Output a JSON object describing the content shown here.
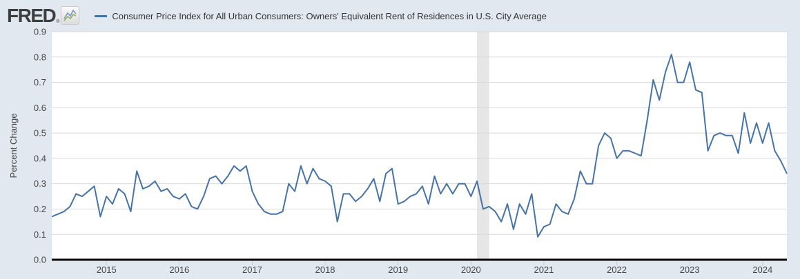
{
  "header": {
    "logo_text": "FRED",
    "registered_mark": "®",
    "title": "Consumer Price Index for All Urban Consumers: Owners' Equivalent Rent of Residences in U.S. City Average"
  },
  "colors": {
    "page_background": "#e2e8f0",
    "plot_background": "#ffffff",
    "gridline": "#d9d9d9",
    "axis_line": "#000000",
    "recession_band": "#e6e6e6",
    "series_line": "#4572a7",
    "axis_text": "#454545",
    "tick_mark": "#c3cedb",
    "logo_text_color": "#3d3d3d"
  },
  "chart_data": {
    "type": "line",
    "title": "Consumer Price Index for All Urban Consumers: Owners' Equivalent Rent of Residences in U.S. City Average",
    "xlabel": "",
    "ylabel": "Percent Change",
    "ylim": [
      0.0,
      0.9
    ],
    "y_tick_labels": [
      "0.0",
      "0.1",
      "0.2",
      "0.3",
      "0.4",
      "0.5",
      "0.6",
      "0.7",
      "0.8",
      "0.9"
    ],
    "x_tick_labels": [
      "2015",
      "2016",
      "2017",
      "2018",
      "2019",
      "2020",
      "2021",
      "2022",
      "2023",
      "2024"
    ],
    "grid": true,
    "legend_position": "top-left",
    "frequency": "monthly",
    "x_start": "2014-04",
    "x_end": "2024-05",
    "recession_band": {
      "start": "2020-02",
      "end": "2020-04"
    },
    "series": [
      {
        "name": "Consumer Price Index for All Urban Consumers: Owners' Equivalent Rent of Residences in U.S. City Average",
        "color": "#4572a7",
        "values": [
          0.17,
          0.18,
          0.19,
          0.21,
          0.26,
          0.25,
          0.27,
          0.29,
          0.17,
          0.25,
          0.22,
          0.28,
          0.26,
          0.19,
          0.35,
          0.28,
          0.29,
          0.31,
          0.27,
          0.28,
          0.25,
          0.24,
          0.26,
          0.21,
          0.2,
          0.25,
          0.32,
          0.33,
          0.3,
          0.33,
          0.37,
          0.35,
          0.37,
          0.27,
          0.22,
          0.19,
          0.18,
          0.18,
          0.19,
          0.3,
          0.27,
          0.37,
          0.3,
          0.36,
          0.32,
          0.31,
          0.29,
          0.15,
          0.26,
          0.26,
          0.23,
          0.25,
          0.28,
          0.32,
          0.23,
          0.34,
          0.36,
          0.22,
          0.23,
          0.25,
          0.26,
          0.29,
          0.22,
          0.33,
          0.26,
          0.3,
          0.26,
          0.3,
          0.3,
          0.25,
          0.31,
          0.2,
          0.21,
          0.19,
          0.15,
          0.22,
          0.12,
          0.22,
          0.18,
          0.26,
          0.09,
          0.13,
          0.14,
          0.22,
          0.19,
          0.18,
          0.24,
          0.35,
          0.3,
          0.3,
          0.45,
          0.5,
          0.48,
          0.4,
          0.43,
          0.43,
          0.42,
          0.41,
          0.55,
          0.71,
          0.63,
          0.74,
          0.81,
          0.7,
          0.7,
          0.78,
          0.67,
          0.66,
          0.43,
          0.49,
          0.5,
          0.49,
          0.49,
          0.42,
          0.58,
          0.46,
          0.54,
          0.46,
          0.54,
          0.43,
          0.39,
          0.34
        ]
      }
    ]
  }
}
